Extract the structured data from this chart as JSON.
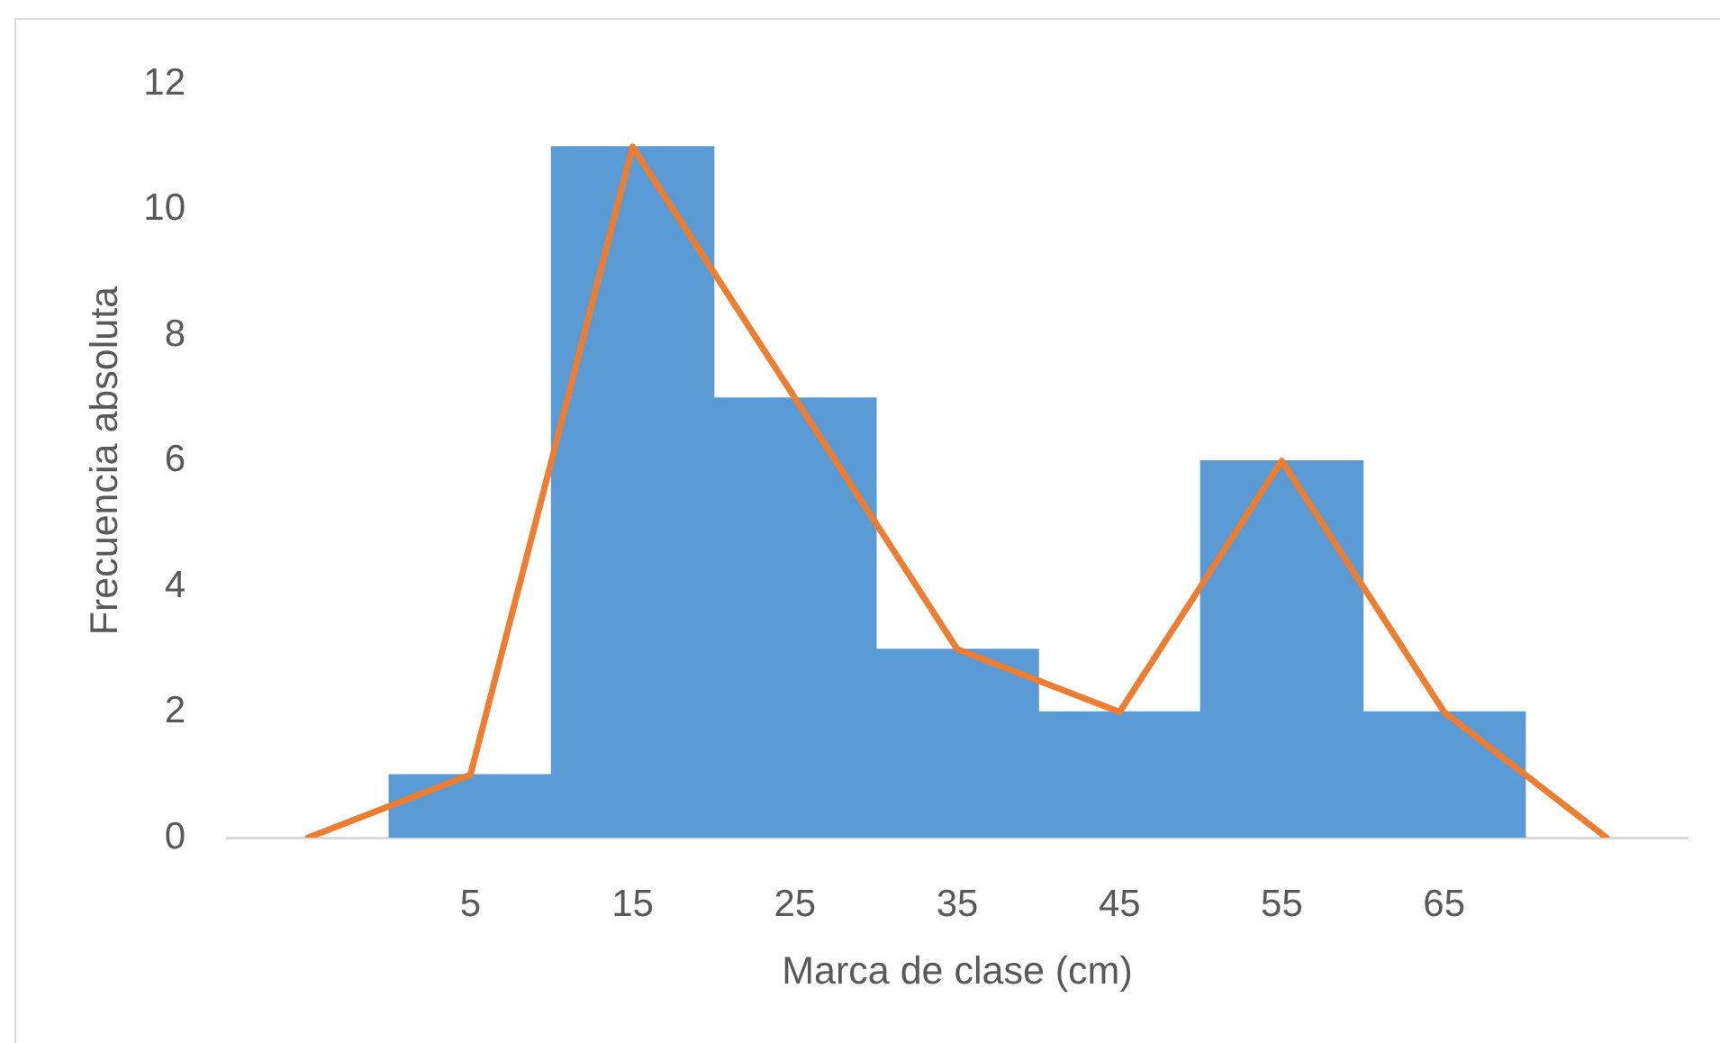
{
  "chart_data": {
    "type": "bar",
    "xlabel": "Marca de clase (cm)",
    "ylabel": "Frecuencia absoluta",
    "categories": [
      null,
      "5",
      "15",
      "25",
      "35",
      "45",
      "55",
      "65",
      null
    ],
    "series": [
      {
        "color": "#5b9bd5",
        "values": [
          null,
          1,
          11,
          7,
          3,
          2,
          6,
          2,
          null
        ]
      },
      {
        "type": "line",
        "color": "#ed7d31",
        "values": [
          0,
          1,
          11,
          7,
          3,
          2,
          6,
          2,
          0
        ]
      }
    ],
    "ylim": [
      0,
      12
    ],
    "yticks": [
      0,
      2,
      4,
      6,
      8,
      10,
      12
    ],
    "grid": false,
    "legend": false
  }
}
